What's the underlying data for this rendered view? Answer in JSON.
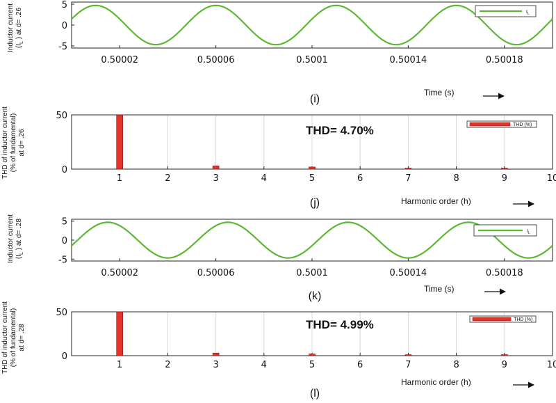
{
  "chart_data": [
    {
      "type": "line",
      "panel": "i",
      "caption": "(i)",
      "ylabel": [
        "Inductor current",
        "(I_L ) at d= .26"
      ],
      "xlabel": "Time (s)",
      "xlim": [
        0.5,
        0.5002
      ],
      "ylim": [
        -5.5,
        5.5
      ],
      "yticks": [
        5,
        0,
        -5
      ],
      "xticks": [
        0.50002,
        0.50006,
        0.5001,
        0.50014,
        0.50018
      ],
      "xtick_labels": [
        "0.50002",
        "0.50006",
        "0.5001",
        "0.50014",
        "0.50018"
      ],
      "series": [
        {
          "name": "I_L",
          "color": "#5cb833",
          "amplitude": 4.7,
          "period": 5e-05,
          "peak_time": 0.50001
        }
      ],
      "legend": "top-right"
    },
    {
      "type": "bar",
      "panel": "j",
      "caption": "(j)",
      "ylabel": [
        "THD of inductor current",
        "(% of fundamental)",
        "at d= .26"
      ],
      "xlabel": "Harmonic order (h)",
      "xlim": [
        0,
        10
      ],
      "ylim": [
        0,
        50
      ],
      "yticks": [
        50,
        0
      ],
      "xticks": [
        1,
        2,
        3,
        4,
        5,
        6,
        7,
        8,
        9,
        10
      ],
      "categories": [
        1,
        3,
        5,
        7,
        9
      ],
      "values": [
        50,
        3.0,
        2.0,
        0.5,
        0.8
      ],
      "series": [
        {
          "name": "THD (%)",
          "color": "#e0342c"
        }
      ],
      "annotation": "THD= 4.70%",
      "legend": "top-right"
    },
    {
      "type": "line",
      "panel": "k",
      "caption": "(k)",
      "ylabel": [
        "Inductor current",
        "(I_L ) at d= .28"
      ],
      "xlabel": "Time (s)",
      "xlim": [
        0.5,
        0.5002
      ],
      "ylim": [
        -5.5,
        5.5
      ],
      "yticks": [
        5,
        0,
        -5
      ],
      "xticks": [
        0.50002,
        0.50006,
        0.5001,
        0.50014,
        0.50018
      ],
      "xtick_labels": [
        "0.50002",
        "0.50006",
        "0.5001",
        "0.50014",
        "0.50018"
      ],
      "series": [
        {
          "name": "I_L",
          "color": "#5cb833",
          "amplitude": 4.7,
          "period": 5e-05,
          "peak_time": 0.500015
        }
      ],
      "legend": "top-right"
    },
    {
      "type": "bar",
      "panel": "l",
      "caption": "(l)",
      "ylabel": [
        "THD of inductor current",
        "(% of fundamental)",
        "at d= .28"
      ],
      "xlabel": "Harmonic order (h)",
      "xlim": [
        0,
        10
      ],
      "ylim": [
        0,
        50
      ],
      "yticks": [
        50,
        0
      ],
      "xticks": [
        1,
        2,
        3,
        4,
        5,
        6,
        7,
        8,
        9,
        10
      ],
      "categories": [
        1,
        3,
        5,
        7,
        9
      ],
      "values": [
        50,
        3.0,
        2.0,
        0.5,
        0.8
      ],
      "series": [
        {
          "name": "THD (%)",
          "color": "#e0342c"
        }
      ],
      "annotation": "THD= 4.99%",
      "legend": "top-right"
    }
  ]
}
